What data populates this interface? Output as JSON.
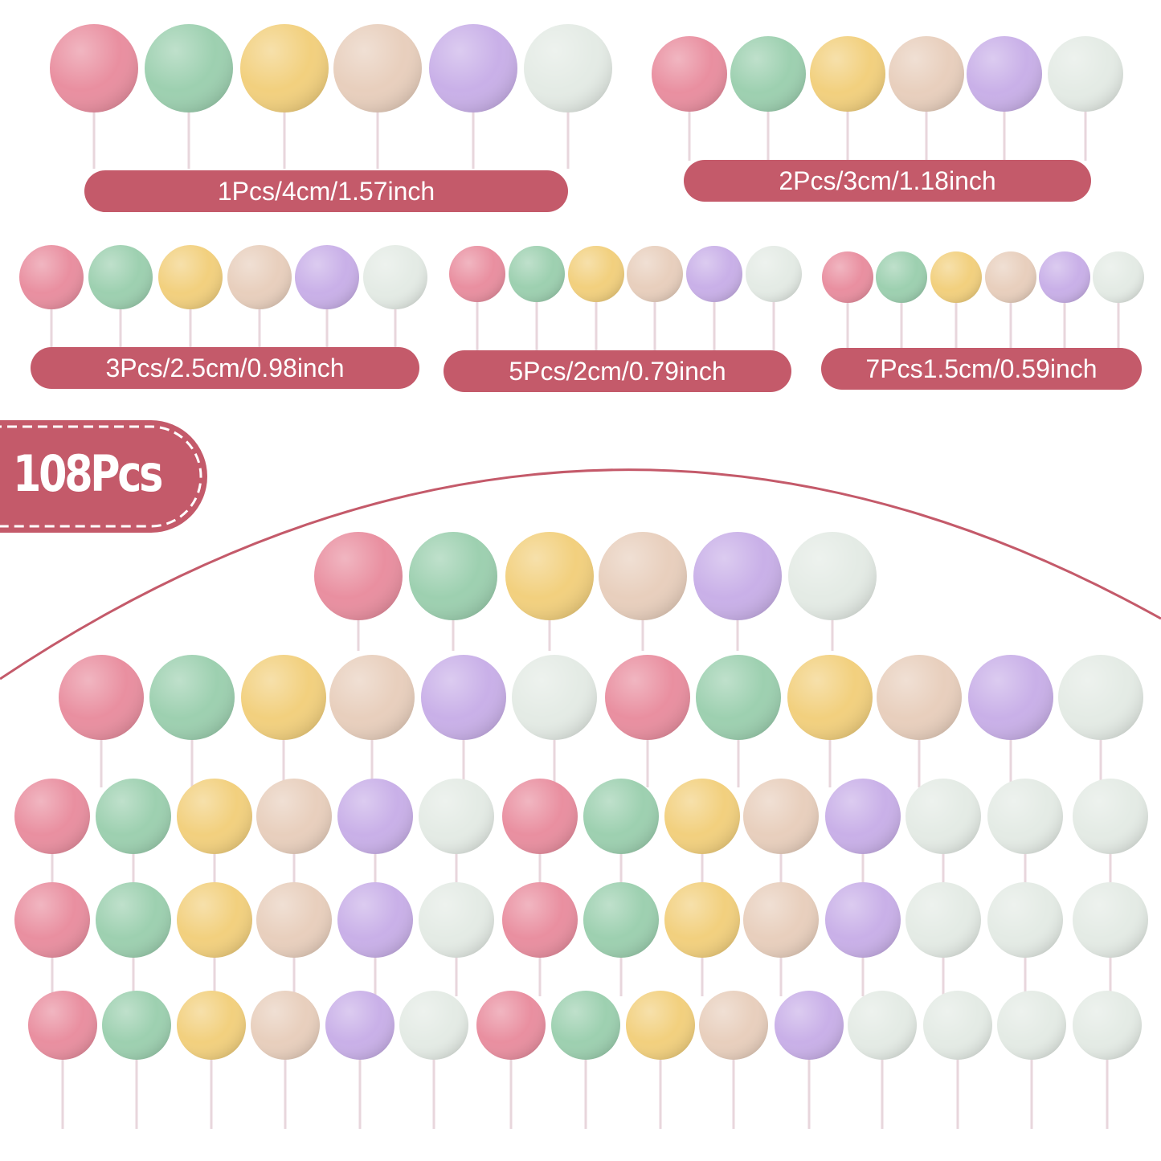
{
  "colors": {
    "label": "#c45a6a",
    "pink": "#e98fa0",
    "green": "#9dd0b0",
    "yellow": "#f2d07e",
    "beige": "#e8cfbd",
    "lavender": "#c9b0e8",
    "white": "#e4ebe5"
  },
  "size_labels": [
    "1Pcs/4cm/1.57inch",
    "2Pcs/3cm/1.18inch",
    "3Pcs/2.5cm/0.98inch",
    "5Pcs/2cm/0.79inch",
    "7Pcs1.5cm/0.59inch"
  ],
  "badge": {
    "text": "108Pcs"
  }
}
